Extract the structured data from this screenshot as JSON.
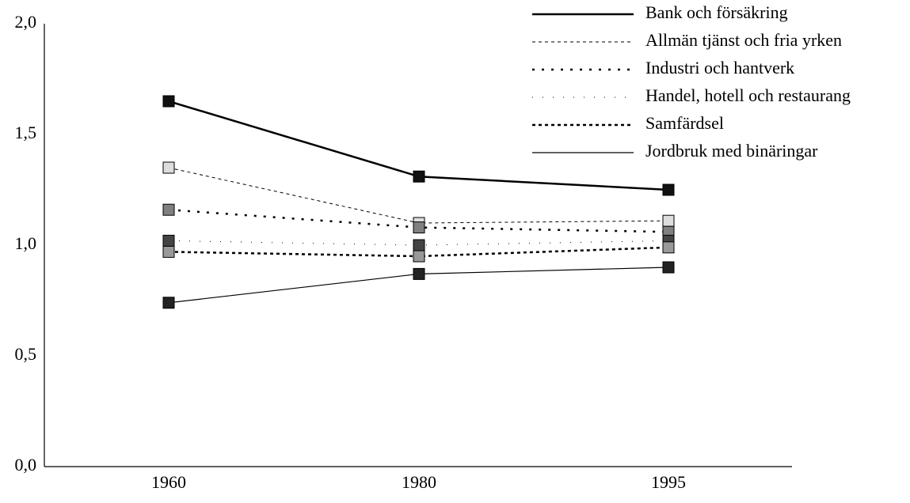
{
  "chart_data": {
    "type": "line",
    "categories": [
      "1960",
      "1980",
      "1995"
    ],
    "series": [
      {
        "name": "Bank och försäkring",
        "color": "#111111",
        "dash": "none",
        "width": 2.5,
        "values": [
          1.65,
          1.31,
          1.25
        ]
      },
      {
        "name": "Allmän tjänst och fria yrken",
        "color": "#dddddd",
        "dash": "4 4",
        "width": 1,
        "values": [
          1.35,
          1.1,
          1.11
        ]
      },
      {
        "name": "Industri och hantverk",
        "color": "#808080",
        "dash": "3 9",
        "width": 2.5,
        "values": [
          1.16,
          1.08,
          1.06
        ]
      },
      {
        "name": "Handel, hotell och restaurang",
        "color": "#444444",
        "dash": "1 12",
        "width": 1,
        "values": [
          1.02,
          1.0,
          1.02
        ]
      },
      {
        "name": "Samfärdsel",
        "color": "#999999",
        "dash": "4 4",
        "width": 2.5,
        "values": [
          0.97,
          0.95,
          0.99
        ]
      },
      {
        "name": "Jordbruk med binäringar",
        "color": "#222222",
        "dash": "none",
        "width": 1.2,
        "values": [
          0.74,
          0.87,
          0.9
        ]
      }
    ],
    "ylim": [
      0,
      2
    ],
    "yticks": [
      {
        "value": 0,
        "label": "0,0"
      },
      {
        "value": 0.5,
        "label": "0,5"
      },
      {
        "value": 1,
        "label": "1,0"
      },
      {
        "value": 1.5,
        "label": "1,5"
      },
      {
        "value": 2,
        "label": "2,0"
      }
    ],
    "legend": "top-right"
  }
}
